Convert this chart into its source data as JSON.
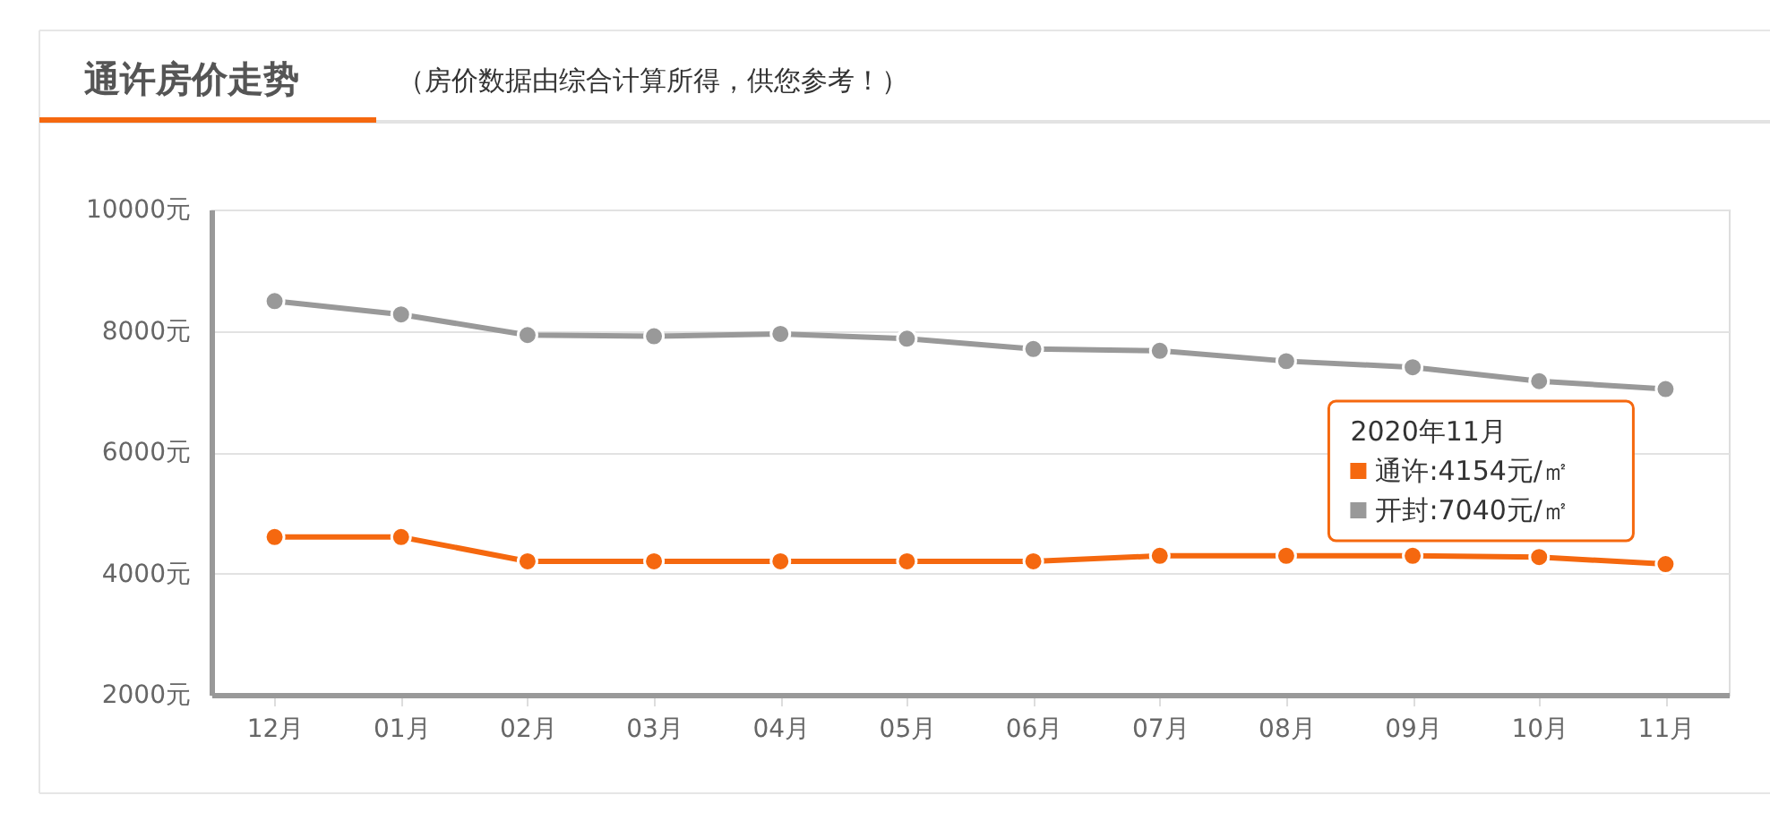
{
  "chart_data": {
    "type": "line",
    "title": "通许房价走势",
    "subtitle": "（房价数据由综合计算所得，供您参考！）",
    "categories": [
      "12月",
      "01月",
      "02月",
      "03月",
      "04月",
      "05月",
      "06月",
      "07月",
      "08月",
      "09月",
      "10月",
      "11月"
    ],
    "series": [
      {
        "name": "通许",
        "color": "#f5680f",
        "values": [
          4600,
          4600,
          4200,
          4200,
          4200,
          4200,
          4200,
          4290,
          4290,
          4290,
          4270,
          4154
        ]
      },
      {
        "name": "开封",
        "color": "#999999",
        "values": [
          8490,
          8270,
          7930,
          7910,
          7950,
          7870,
          7700,
          7670,
          7500,
          7400,
          7170,
          7040
        ]
      }
    ],
    "ylim": [
      2000,
      10000
    ],
    "yticks": [
      {
        "value": 2000,
        "label": "2000元"
      },
      {
        "value": 4000,
        "label": "4000元"
      },
      {
        "value": 6000,
        "label": "6000元"
      },
      {
        "value": 8000,
        "label": "8000元"
      },
      {
        "value": 10000,
        "label": "10000元"
      }
    ],
    "grid": "y",
    "marker": "circle",
    "line_style": "solid",
    "legend": "right",
    "annotations": [
      "2020年11月",
      ":4154元/㎡",
      ":7040元/㎡"
    ]
  }
}
